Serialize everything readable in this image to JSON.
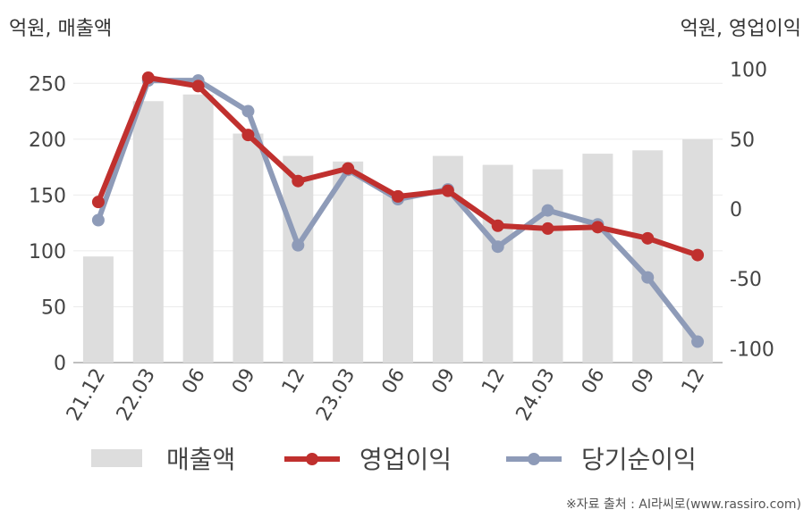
{
  "left_unit_label": "억원, 매출액",
  "right_unit_label": "억원, 영업이익",
  "source_note": "※자료 출처 : AI라씨로(www.rassiro.com)",
  "colors": {
    "revenue": "#dddddd",
    "operating_profit": "#c0302e",
    "net_income": "#8e9bb8"
  },
  "chart_data": {
    "type": "bar",
    "categories": [
      "21.12",
      "22.03",
      "06",
      "09",
      "12",
      "23.03",
      "06",
      "09",
      "12",
      "24.03",
      "06",
      "09",
      "12"
    ],
    "y_left": {
      "ylim": [
        0,
        275
      ],
      "ticks": [
        0,
        50,
        100,
        150,
        200,
        250
      ],
      "tick_labels": [
        "0",
        "50",
        "100",
        "150",
        "200",
        "250"
      ]
    },
    "y_right": {
      "ylim": [
        -110,
        110
      ],
      "ticks": [
        -100,
        -50,
        0,
        50,
        100
      ],
      "tick_labels": [
        "-100",
        "-50",
        "0",
        "50",
        "100"
      ]
    },
    "series": [
      {
        "name": "매출액",
        "type": "bar",
        "axis": "left",
        "values": [
          95,
          234,
          240,
          205,
          185,
          180,
          152,
          185,
          177,
          173,
          187,
          190,
          200
        ]
      },
      {
        "name": "영업이익",
        "type": "line",
        "axis": "right",
        "values": [
          5,
          94,
          88,
          53,
          20,
          29,
          9,
          13,
          -12,
          -14,
          -13,
          -21,
          -33
        ]
      },
      {
        "name": "당기순이익",
        "type": "line",
        "axis": "right",
        "values": [
          -8,
          92,
          92,
          70,
          -26,
          28,
          7,
          14,
          -27,
          -1,
          -11,
          -49,
          -95
        ]
      }
    ],
    "grid": true,
    "legend_position": "bottom"
  }
}
